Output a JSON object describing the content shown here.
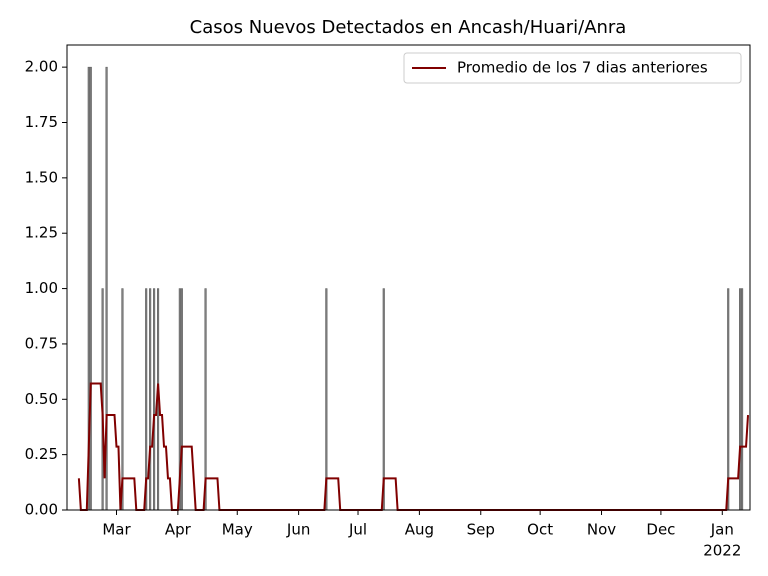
{
  "chart_data": {
    "type": "bar",
    "title": "Casos Nuevos Detectados en Ancash/Huari/Anra",
    "x": [
      -14,
      -13,
      -7,
      -5,
      3,
      15,
      17,
      19,
      21,
      32,
      33,
      45,
      106,
      135,
      309,
      315,
      316
    ],
    "values": [
      2,
      2,
      1,
      2,
      1,
      1,
      1,
      1,
      1,
      1,
      1,
      1,
      1,
      1,
      1,
      1,
      1
    ],
    "color": "#808080",
    "series": [
      {
        "name": "Promedio de los 7 dias anteriores",
        "color": "#800000",
        "x": [
          -19,
          -18,
          -15,
          -14,
          -13,
          -8,
          -7,
          -6,
          -5,
          -1,
          0,
          1,
          2,
          3,
          9,
          10,
          14,
          15,
          16,
          17,
          18,
          19,
          20,
          21,
          22,
          23,
          24,
          25,
          26,
          27,
          28,
          31,
          32,
          33,
          38,
          39,
          40,
          44,
          45,
          51,
          52,
          105,
          106,
          112,
          113,
          134,
          135,
          141,
          142,
          308,
          309,
          314,
          315,
          318,
          319
        ],
        "values": [
          0.143,
          0,
          0,
          0.286,
          0.571,
          0.571,
          0.429,
          0.143,
          0.429,
          0.429,
          0.286,
          0.286,
          0,
          0.143,
          0.143,
          0,
          0,
          0.143,
          0.143,
          0.286,
          0.286,
          0.429,
          0.429,
          0.571,
          0.429,
          0.429,
          0.286,
          0.286,
          0.143,
          0.143,
          0,
          0,
          0.143,
          0.286,
          0.286,
          0.143,
          0,
          0,
          0.143,
          0.143,
          0,
          0,
          0.143,
          0.143,
          0,
          0,
          0.143,
          0.143,
          0,
          0,
          0.143,
          0.143,
          0.286,
          0.286,
          0.429
        ]
      }
    ],
    "xlim": [
      -25,
      320
    ],
    "xticks": [
      {
        "value": 0,
        "label": "Mar"
      },
      {
        "value": 31,
        "label": "Apr"
      },
      {
        "value": 61,
        "label": "May"
      },
      {
        "value": 92,
        "label": "Jun"
      },
      {
        "value": 122,
        "label": "Jul"
      },
      {
        "value": 153,
        "label": "Aug"
      },
      {
        "value": 184,
        "label": "Sep"
      },
      {
        "value": 214,
        "label": "Oct"
      },
      {
        "value": 245,
        "label": "Nov"
      },
      {
        "value": 275,
        "label": "Dec"
      },
      {
        "value": 306,
        "label": "Jan"
      }
    ],
    "x_year_label": "2022",
    "ylim": [
      0,
      2.1
    ],
    "yticks": [
      {
        "value": 0,
        "label": "0.00"
      },
      {
        "value": 0.25,
        "label": "0.25"
      },
      {
        "value": 0.5,
        "label": "0.50"
      },
      {
        "value": 0.75,
        "label": "0.75"
      },
      {
        "value": 1,
        "label": "1.00"
      },
      {
        "value": 1.25,
        "label": "1.25"
      },
      {
        "value": 1.5,
        "label": "1.50"
      },
      {
        "value": 1.75,
        "label": "1.75"
      },
      {
        "value": 2,
        "label": "2.00"
      }
    ],
    "legend": "upper right",
    "grid": false
  }
}
